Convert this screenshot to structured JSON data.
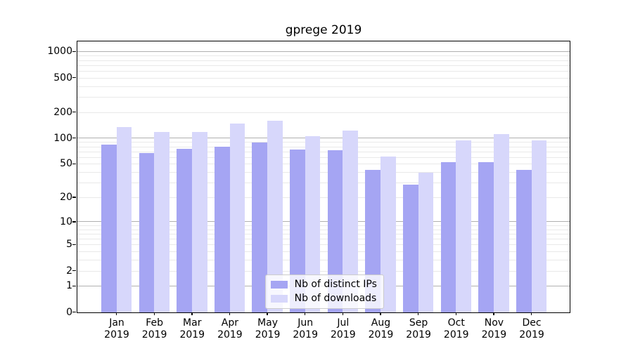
{
  "chart_data": {
    "type": "bar",
    "title": "gprege 2019",
    "categories": [
      "Jan 2019",
      "Feb 2019",
      "Mar 2019",
      "Apr 2019",
      "May 2019",
      "Jun 2019",
      "Jul 2019",
      "Aug 2019",
      "Sep 2019",
      "Oct 2019",
      "Nov 2019",
      "Dec 2019"
    ],
    "series": [
      {
        "name": "Nb of distinct IPs",
        "color": "#a5a5f3",
        "values": [
          85,
          68,
          76,
          81,
          90,
          75,
          74,
          43,
          29,
          53,
          53,
          43
        ]
      },
      {
        "name": "Nb of downloads",
        "color": "#d7d7fb",
        "values": [
          136,
          119,
          120,
          149,
          163,
          107,
          124,
          62,
          40,
          95,
          114,
          95
        ]
      }
    ],
    "xlabel": "",
    "ylabel": "",
    "yscale": "log1p",
    "yticks": [
      0,
      1,
      2,
      5,
      10,
      20,
      50,
      100,
      200,
      500,
      1000
    ],
    "major_grid_values": [
      1,
      10,
      100,
      1000
    ],
    "ylim": [
      0,
      1320
    ],
    "grid": "horizontal",
    "legend_position": "lower center"
  },
  "colors": {
    "background": "#ffffff",
    "spine": "#000000",
    "major_grid": "#b0b0b0",
    "minor_grid": "#e9e9e9",
    "legend_border": "#cccccc"
  }
}
